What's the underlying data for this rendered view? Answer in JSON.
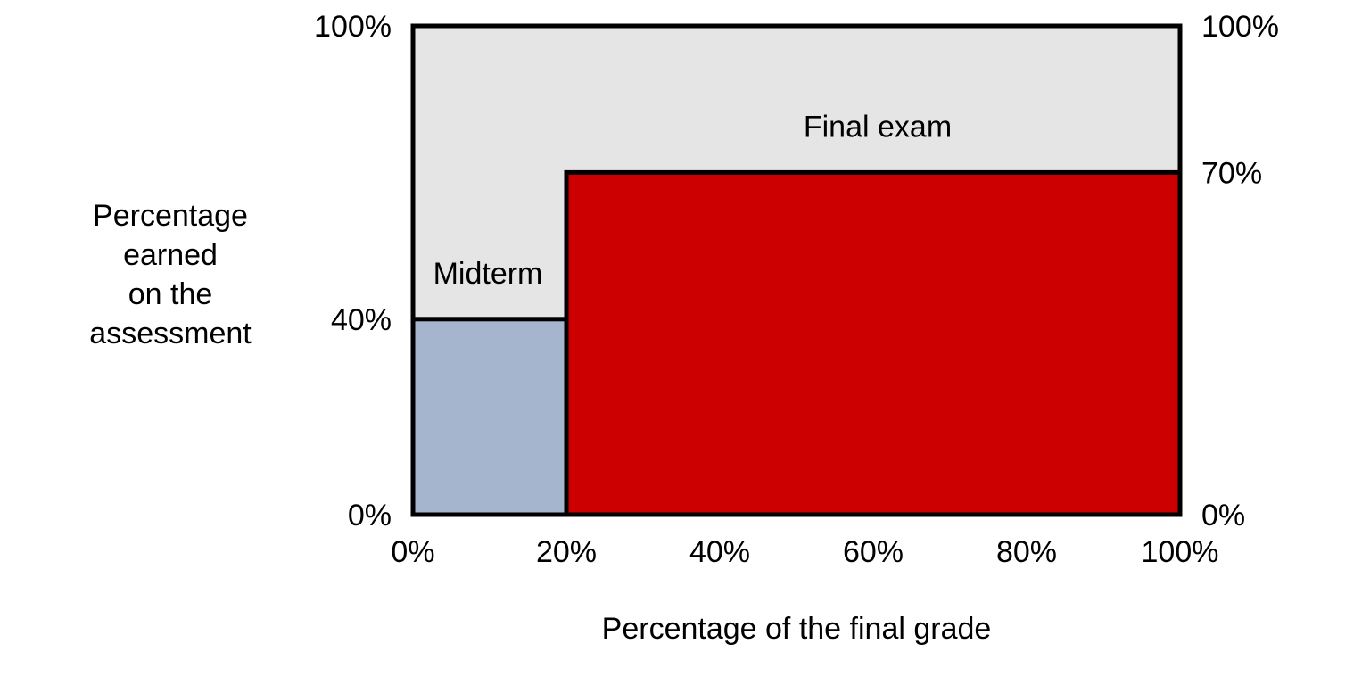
{
  "chart_data": {
    "type": "area",
    "title": "",
    "xlabel": "Percentage of the final grade",
    "ylabel": "Percentage\nearned\non the\nassessment",
    "xlim": [
      0,
      100
    ],
    "ylim": [
      0,
      100
    ],
    "x_ticks": [
      "0%",
      "20%",
      "40%",
      "60%",
      "80%",
      "100%"
    ],
    "x_tick_values": [
      0,
      20,
      40,
      60,
      80,
      100
    ],
    "left_axis_labels": [
      {
        "value": 0,
        "label": "0%"
      },
      {
        "value": 40,
        "label": "40%"
      },
      {
        "value": 100,
        "label": "100%"
      }
    ],
    "right_axis_labels": [
      {
        "value": 0,
        "label": "0%"
      },
      {
        "value": 70,
        "label": "70%"
      },
      {
        "value": 100,
        "label": "100%"
      }
    ],
    "segments": [
      {
        "name": "Midterm",
        "weight": 20,
        "x_start": 0,
        "x_end": 20,
        "earned": 40,
        "color": "#a5b5cd"
      },
      {
        "name": "Final exam",
        "weight": 80,
        "x_start": 20,
        "x_end": 100,
        "earned": 70,
        "color": "#cc0000"
      }
    ],
    "background_color": "#e5e5e5",
    "border_color": "#000000",
    "grid": false
  }
}
